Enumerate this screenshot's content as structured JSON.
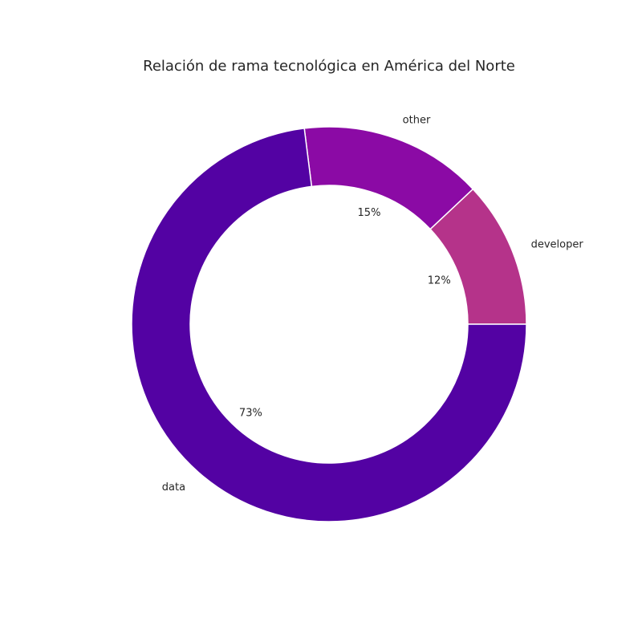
{
  "chart_data": {
    "type": "pie",
    "style": "donut",
    "title": "Relación de rama tecnológica en América del Norte",
    "slices": [
      {
        "label": "developer",
        "value": 12,
        "pct_label": "12%",
        "color": "#b5338a"
      },
      {
        "label": "other",
        "value": 15,
        "pct_label": "15%",
        "color": "#8b0aa5"
      },
      {
        "label": "data",
        "value": 73,
        "pct_label": "73%",
        "color": "#5302a3"
      }
    ]
  }
}
